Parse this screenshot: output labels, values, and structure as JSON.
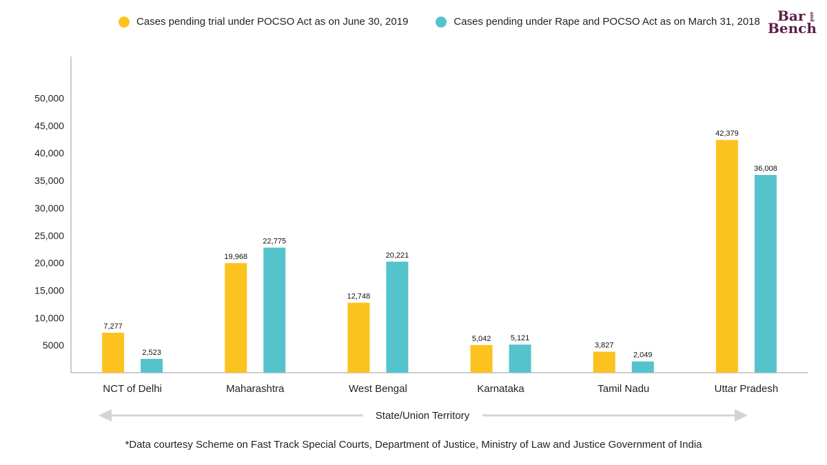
{
  "legend": {
    "items": [
      {
        "label": "Cases pending trial under POCSO Act as on June 30, 2019",
        "color": "#FCC21F"
      },
      {
        "label": "Cases pending under Rape and POCSO Act as on March 31, 2018",
        "color": "#55C3CC"
      }
    ]
  },
  "logo": {
    "word1": "Bar",
    "word2": "Bench",
    "word3": "and"
  },
  "footnote": "*Data courtesy Scheme on Fast Track Special Courts, Department of Justice, Ministry of Law and Justice Government of India",
  "chart_data": {
    "type": "bar",
    "categories": [
      "NCT of Delhi",
      "Maharashtra",
      "West Bengal",
      "Karnataka",
      "Tamil Nadu",
      "Uttar Pradesh"
    ],
    "series": [
      {
        "name": "Cases pending trial under POCSO Act as on June 30, 2019",
        "values": [
          7277,
          19968,
          12748,
          5042,
          3827,
          42379
        ],
        "labels": [
          "7,277",
          "19,968",
          "12,748",
          "5,042",
          "3,827",
          "42,379"
        ],
        "color": "#FCC21F"
      },
      {
        "name": "Cases pending under Rape and POCSO Act as on March 31, 2018",
        "values": [
          2523,
          22775,
          20221,
          5121,
          2049,
          36008
        ],
        "labels": [
          "2,523",
          "22,775",
          "20,221",
          "5,121",
          "2,049",
          "36,008"
        ],
        "color": "#55C3CC"
      }
    ],
    "yticks": [
      {
        "value": 5000,
        "label": "5000"
      },
      {
        "value": 10000,
        "label": "10,000"
      },
      {
        "value": 15000,
        "label": "15,000"
      },
      {
        "value": 20000,
        "label": "20,000"
      },
      {
        "value": 25000,
        "label": "25,000"
      },
      {
        "value": 30000,
        "label": "30,000"
      },
      {
        "value": 35000,
        "label": "35,000"
      },
      {
        "value": 40000,
        "label": "40,000"
      },
      {
        "value": 45000,
        "label": "45,000"
      },
      {
        "value": 50000,
        "label": "50,000"
      }
    ],
    "ylim": [
      0,
      57000
    ],
    "xlabel": "State/Union Territory",
    "ylabel": "",
    "grid": false,
    "legend_position": "top"
  }
}
